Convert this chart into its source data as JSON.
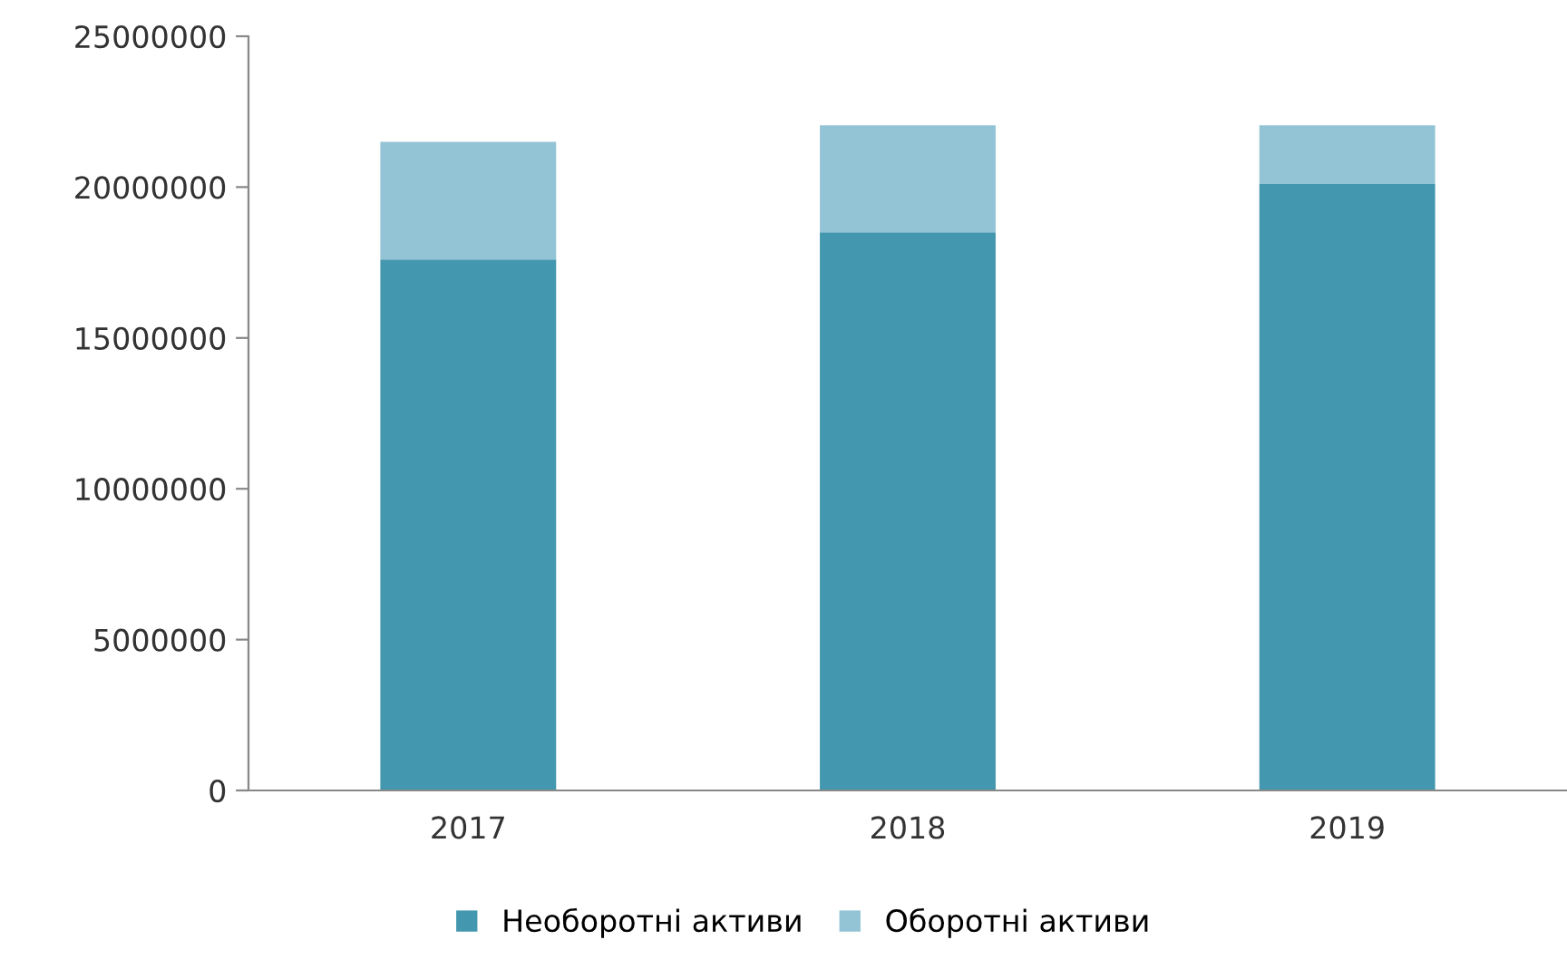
{
  "chart_data": {
    "type": "bar",
    "stacked": true,
    "categories": [
      "2017",
      "2018",
      "2019"
    ],
    "series": [
      {
        "name": "Необоротні активи",
        "color": "#4397ae",
        "values": [
          17600000,
          18500000,
          20100000
        ]
      },
      {
        "name": "Оборотні активи",
        "color": "#93c4d5",
        "values": [
          3900000,
          3550000,
          1950000
        ]
      }
    ],
    "ylim": [
      0,
      25000000
    ],
    "yticks": [
      0,
      5000000,
      10000000,
      15000000,
      20000000,
      25000000
    ],
    "grid": false,
    "legend": "bottom"
  }
}
